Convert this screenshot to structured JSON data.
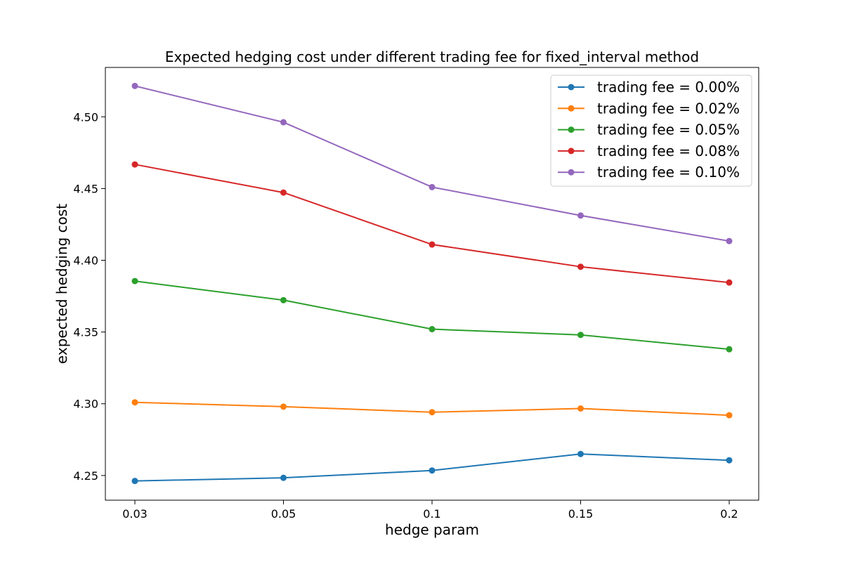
{
  "chart_data": {
    "type": "line",
    "title": "Expected hedging cost under different trading fee for fixed_interval method",
    "xlabel": "hedge param",
    "ylabel": "expected hedging cost",
    "categories": [
      "0.03",
      "0.05",
      "0.1",
      "0.15",
      "0.2"
    ],
    "y_ticks": [
      "4.25",
      "4.30",
      "4.35",
      "4.40",
      "4.45",
      "4.50"
    ],
    "ylim": [
      4.2328,
      4.5344
    ],
    "grid": false,
    "legend_position": "top-right",
    "series": [
      {
        "name": "trading fee = 0.00%",
        "color": "#1f77b4",
        "values": [
          4.2462,
          4.2484,
          4.2535,
          4.265,
          4.2606
        ]
      },
      {
        "name": "trading fee = 0.02%",
        "color": "#ff7f0e",
        "values": [
          4.301,
          4.298,
          4.2941,
          4.2967,
          4.292
        ]
      },
      {
        "name": "trading fee = 0.05%",
        "color": "#2ca02c",
        "values": [
          4.3855,
          4.3722,
          4.352,
          4.348,
          4.338
        ]
      },
      {
        "name": "trading fee = 0.08%",
        "color": "#d62728",
        "values": [
          4.4668,
          4.4472,
          4.411,
          4.3955,
          4.3845
        ]
      },
      {
        "name": "trading fee = 0.10%",
        "color": "#9467bd",
        "values": [
          4.5215,
          4.4962,
          4.451,
          4.4312,
          4.4134
        ]
      }
    ]
  }
}
